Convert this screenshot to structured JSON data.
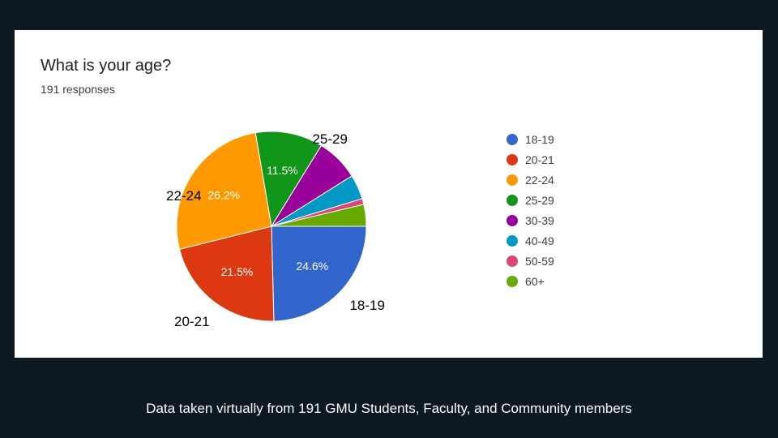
{
  "chart_data": {
    "type": "pie",
    "title": "What is your age?",
    "subtitle": "191 responses",
    "categories": [
      "18-19",
      "20-21",
      "22-24",
      "25-29",
      "30-39",
      "40-49",
      "50-59",
      "60+"
    ],
    "values": [
      24.6,
      21.5,
      26.2,
      11.5,
      7.3,
      4.2,
      1.0,
      3.7
    ],
    "slice_labels": [
      "24.6%",
      "21.5%",
      "26.2%",
      "11.5%",
      "",
      "",
      "",
      ""
    ],
    "outer_labels": [
      "18-19",
      "20-21",
      "22-24",
      "25-29",
      "",
      "",
      "",
      ""
    ],
    "colors": [
      "#3366cc",
      "#dc3912",
      "#ff9900",
      "#109618",
      "#990099",
      "#0099c6",
      "#dd4477",
      "#66aa00"
    ],
    "legend_position": "right"
  },
  "caption": "Data taken virtually from 191 GMU Students, Faculty, and Community members"
}
